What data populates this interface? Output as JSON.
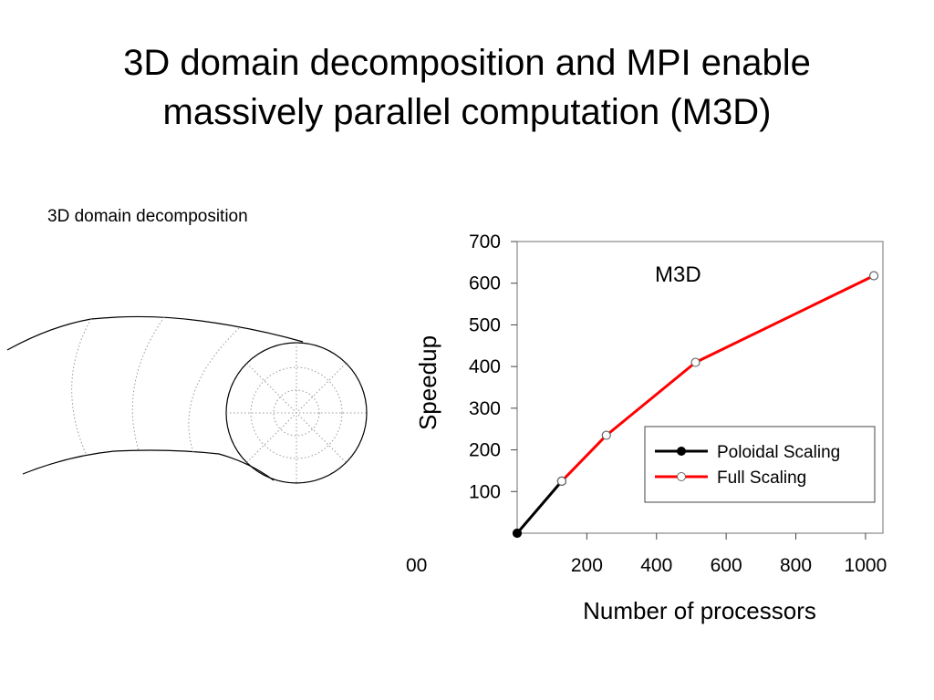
{
  "slide": {
    "title_line1": "3D domain decomposition and MPI enable",
    "title_line2": "massively parallel computation (M3D)",
    "diagram_caption": "3D domain decomposition"
  },
  "chart_data": {
    "type": "line",
    "xlabel": "Number of processors",
    "ylabel": "Speedup",
    "annotation": "M3D",
    "xlim": [
      0,
      1050
    ],
    "ylim": [
      0,
      700
    ],
    "x_ticks": [
      200,
      400,
      600,
      800,
      1000
    ],
    "x_tick_labels": [
      "200",
      "400",
      "600",
      "800",
      "1000"
    ],
    "x_partial_label": "00",
    "y_ticks": [
      100,
      200,
      300,
      400,
      500,
      600,
      700
    ],
    "y_tick_labels": [
      "100",
      "200",
      "300",
      "400",
      "500",
      "600",
      "700"
    ],
    "grid": false,
    "legend": "inside-lower-right",
    "series": [
      {
        "name": "Poloidal Scaling",
        "color": "#000000",
        "marker": "filled-circle",
        "x": [
          0,
          128
        ],
        "y": [
          0,
          125
        ]
      },
      {
        "name": "Full Scaling",
        "color": "#ff0000",
        "marker": "open-circle",
        "x": [
          128,
          256,
          512,
          1024
        ],
        "y": [
          125,
          235,
          410,
          618
        ]
      }
    ]
  }
}
